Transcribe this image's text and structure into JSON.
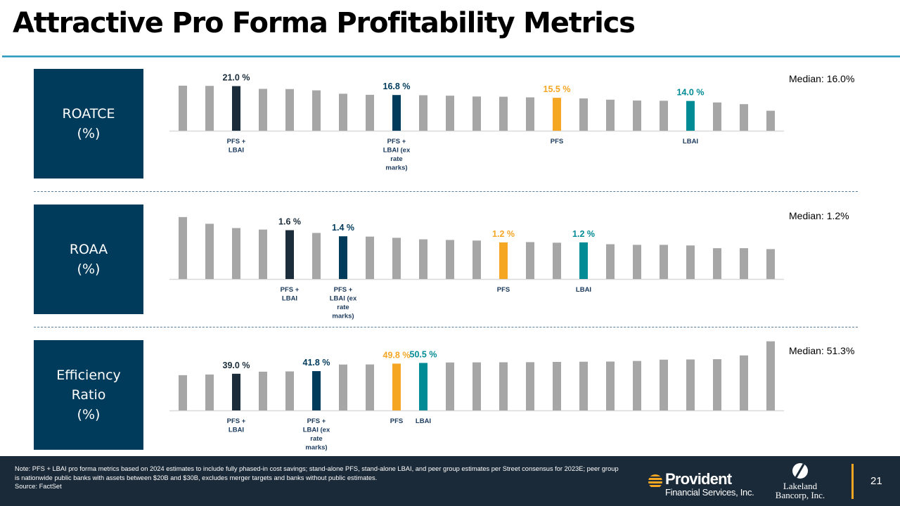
{
  "page": {
    "title": "Attractive Pro Forma Profitability Metrics",
    "page_number": "21"
  },
  "colors": {
    "peer": "#a6a6a6",
    "pfs_lbai": "#1b2d3b",
    "pfs_lbai_ex": "#003b5c",
    "pfs": "#f5a623",
    "lbai": "#008b95",
    "metric_box": "#003b5c",
    "accent_rule": "#2e9bbd",
    "footer_bg": "#1b2a38"
  },
  "footer": {
    "note_line1": "Note: PFS + LBAI pro forma metrics based on 2024 estimates to include fully phased-in cost savings; stand-alone PFS, stand-alone LBAI, and peer group estimates per Street consensus for 2023E; peer group",
    "note_line2": "is nationwide public banks with assets between $20B and $30B, excludes merger targets and banks without public estimates.",
    "source": "Source: FactSet",
    "logo_provident_name": "Provident",
    "logo_provident_sub": "Financial Services, Inc.",
    "logo_lakeland_line1": "Lakeland",
    "logo_lakeland_line2": "Bancorp, Inc."
  },
  "chart_data": [
    {
      "type": "bar",
      "title": "ROATCE\n(%)",
      "median_label": "Median: 16.0%",
      "median": 16.0,
      "ylim": [
        0,
        21.5
      ],
      "grid": false,
      "categories": [
        "",
        "",
        "PFS +\nLBAI",
        "",
        "",
        "",
        "",
        "",
        "PFS +\nLBAI (ex\nrate\nmarks)",
        "",
        "",
        "",
        "",
        "",
        "PFS",
        "",
        "",
        "",
        "",
        "LBAI",
        "",
        "",
        ""
      ],
      "values": [
        21.2,
        21.1,
        21.0,
        19.7,
        19.6,
        19.0,
        17.4,
        16.9,
        16.8,
        16.7,
        16.5,
        16.1,
        16.0,
        15.7,
        15.5,
        15.2,
        14.6,
        14.2,
        14.1,
        14.0,
        13.3,
        12.5,
        9.4
      ],
      "highlights": [
        {
          "index": 2,
          "key": "pfs_lbai",
          "label": "21.0 %"
        },
        {
          "index": 8,
          "key": "pfs_lbai_ex",
          "label": "16.8 %"
        },
        {
          "index": 14,
          "key": "pfs",
          "label": "15.5 %"
        },
        {
          "index": 19,
          "key": "lbai",
          "label": "14.0 %"
        }
      ]
    },
    {
      "type": "bar",
      "title": "ROAA\n(%)",
      "median_label": "Median: 1.2%",
      "median": 1.2,
      "ylim": [
        0,
        2.05
      ],
      "grid": false,
      "categories": [
        "",
        "",
        "",
        "",
        "PFS +\nLBAI",
        "",
        "PFS +\nLBAI (ex\nrate\nmarks)",
        "",
        "",
        "",
        "",
        "",
        "PFS",
        "",
        "",
        "LBAI",
        "",
        "",
        "",
        "",
        "",
        "",
        ""
      ],
      "values": [
        2.03,
        1.81,
        1.67,
        1.62,
        1.6,
        1.51,
        1.4,
        1.39,
        1.35,
        1.3,
        1.28,
        1.26,
        1.2,
        1.21,
        1.19,
        1.2,
        1.14,
        1.12,
        1.12,
        1.1,
        1.01,
        1.01,
        0.98
      ],
      "highlights": [
        {
          "index": 4,
          "key": "pfs_lbai",
          "label": "1.6 %"
        },
        {
          "index": 6,
          "key": "pfs_lbai_ex",
          "label": "1.4 %"
        },
        {
          "index": 12,
          "key": "pfs",
          "label": "1.2 %"
        },
        {
          "index": 15,
          "key": "lbai",
          "label": "1.2 %"
        }
      ]
    },
    {
      "type": "bar",
      "title": "Efficiency\nRatio\n(%)",
      "median_label": "Median: 51.3%",
      "median": 51.3,
      "ylim": [
        0,
        74
      ],
      "grid": false,
      "categories": [
        "",
        "",
        "PFS +\nLBAI",
        "",
        "",
        "PFS +\nLBAI (ex\nrate\nmarks)",
        "",
        "",
        "PFS",
        "LBAI",
        "",
        "",
        "",
        "",
        "",
        "",
        "",
        "",
        "",
        "",
        "",
        "",
        ""
      ],
      "values": [
        37.5,
        38.2,
        39.0,
        41.2,
        41.5,
        41.8,
        48.8,
        48.9,
        49.8,
        50.5,
        51.0,
        51.1,
        51.2,
        51.3,
        51.6,
        51.8,
        52.0,
        52.6,
        54.0,
        54.2,
        54.5,
        58.5,
        73.5
      ],
      "highlights": [
        {
          "index": 2,
          "key": "pfs_lbai",
          "label": "39.0 %"
        },
        {
          "index": 5,
          "key": "pfs_lbai_ex",
          "label": "41.8 %"
        },
        {
          "index": 8,
          "key": "pfs",
          "label": "49.8 %"
        },
        {
          "index": 9,
          "key": "lbai",
          "label": "50.5 %"
        }
      ]
    }
  ]
}
